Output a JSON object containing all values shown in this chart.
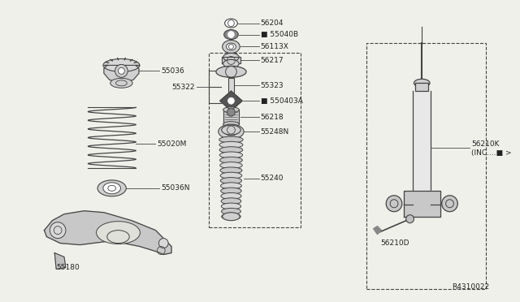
{
  "bg_color": "#f0f0eb",
  "line_color": "#444444",
  "text_color": "#222222",
  "ref_code": "R4310022",
  "figsize": [
    6.4,
    3.72
  ],
  "dpi": 100,
  "xlim": [
    0,
    640
  ],
  "ylim": [
    0,
    372
  ]
}
